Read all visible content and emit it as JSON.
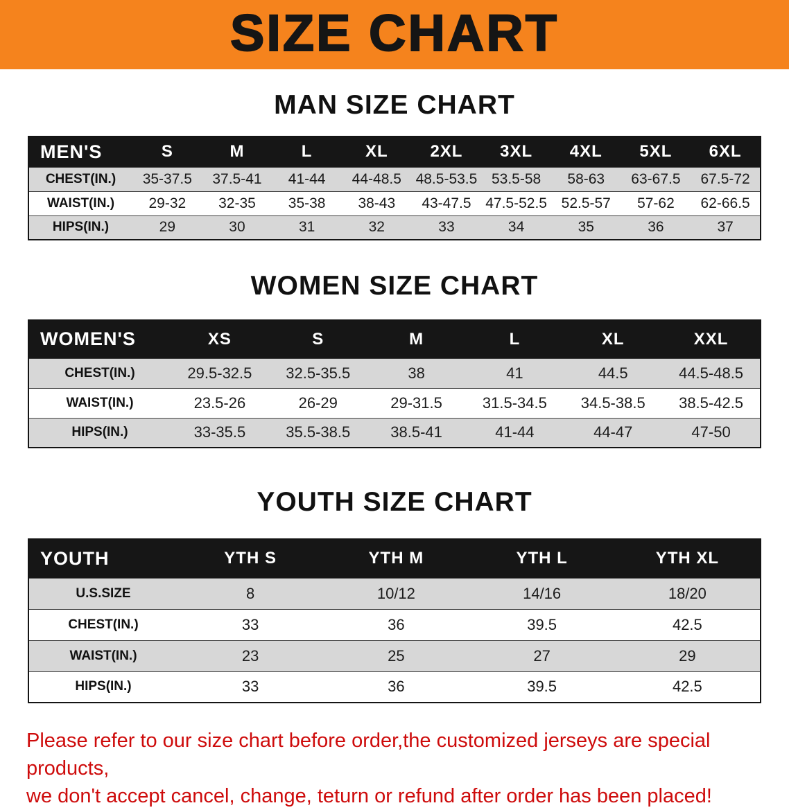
{
  "banner": {
    "title": "SIZE CHART"
  },
  "colors": {
    "banner_bg": "#F5831D",
    "header_bg": "#161616",
    "stripe": "#D7D7D7",
    "footer_text": "#CE0B0B"
  },
  "sections": [
    {
      "id": "men",
      "heading": "MAN SIZE CHART",
      "table": {
        "header": [
          "MEN'S",
          "S",
          "M",
          "L",
          "XL",
          "2XL",
          "3XL",
          "4XL",
          "5XL",
          "6XL"
        ],
        "rows": [
          [
            "CHEST(IN.)",
            "35-37.5",
            "37.5-41",
            "41-44",
            "44-48.5",
            "48.5-53.5",
            "53.5-58",
            "58-63",
            "63-67.5",
            "67.5-72"
          ],
          [
            "WAIST(IN.)",
            "29-32",
            "32-35",
            "35-38",
            "38-43",
            "43-47.5",
            "47.5-52.5",
            "52.5-57",
            "57-62",
            "62-66.5"
          ],
          [
            "HIPS(IN.)",
            "29",
            "30",
            "31",
            "32",
            "33",
            "34",
            "35",
            "36",
            "37"
          ]
        ]
      }
    },
    {
      "id": "women",
      "heading": "WOMEN SIZE CHART",
      "table": {
        "header": [
          "WOMEN'S",
          "XS",
          "S",
          "M",
          "L",
          "XL",
          "XXL"
        ],
        "rows": [
          [
            "CHEST(IN.)",
            "29.5-32.5",
            "32.5-35.5",
            "38",
            "41",
            "44.5",
            "44.5-48.5"
          ],
          [
            "WAIST(IN.)",
            "23.5-26",
            "26-29",
            "29-31.5",
            "31.5-34.5",
            "34.5-38.5",
            "38.5-42.5"
          ],
          [
            "HIPS(IN.)",
            "33-35.5",
            "35.5-38.5",
            "38.5-41",
            "41-44",
            "44-47",
            "47-50"
          ]
        ]
      }
    },
    {
      "id": "youth",
      "heading": "YOUTH SIZE CHART",
      "table": {
        "header": [
          "YOUTH",
          "YTH S",
          "YTH M",
          "YTH L",
          "YTH XL"
        ],
        "rows": [
          [
            "U.S.SIZE",
            "8",
            "10/12",
            "14/16",
            "18/20"
          ],
          [
            "CHEST(IN.)",
            "33",
            "36",
            "39.5",
            "42.5"
          ],
          [
            "WAIST(IN.)",
            "23",
            "25",
            "27",
            "29"
          ],
          [
            "HIPS(IN.)",
            "33",
            "36",
            "39.5",
            "42.5"
          ]
        ]
      }
    }
  ],
  "footer": {
    "lines": [
      "Please refer to our size chart before order,the customized jerseys are special products,",
      "we don't accept cancel, change, teturn or refund after order has been placed!"
    ]
  }
}
